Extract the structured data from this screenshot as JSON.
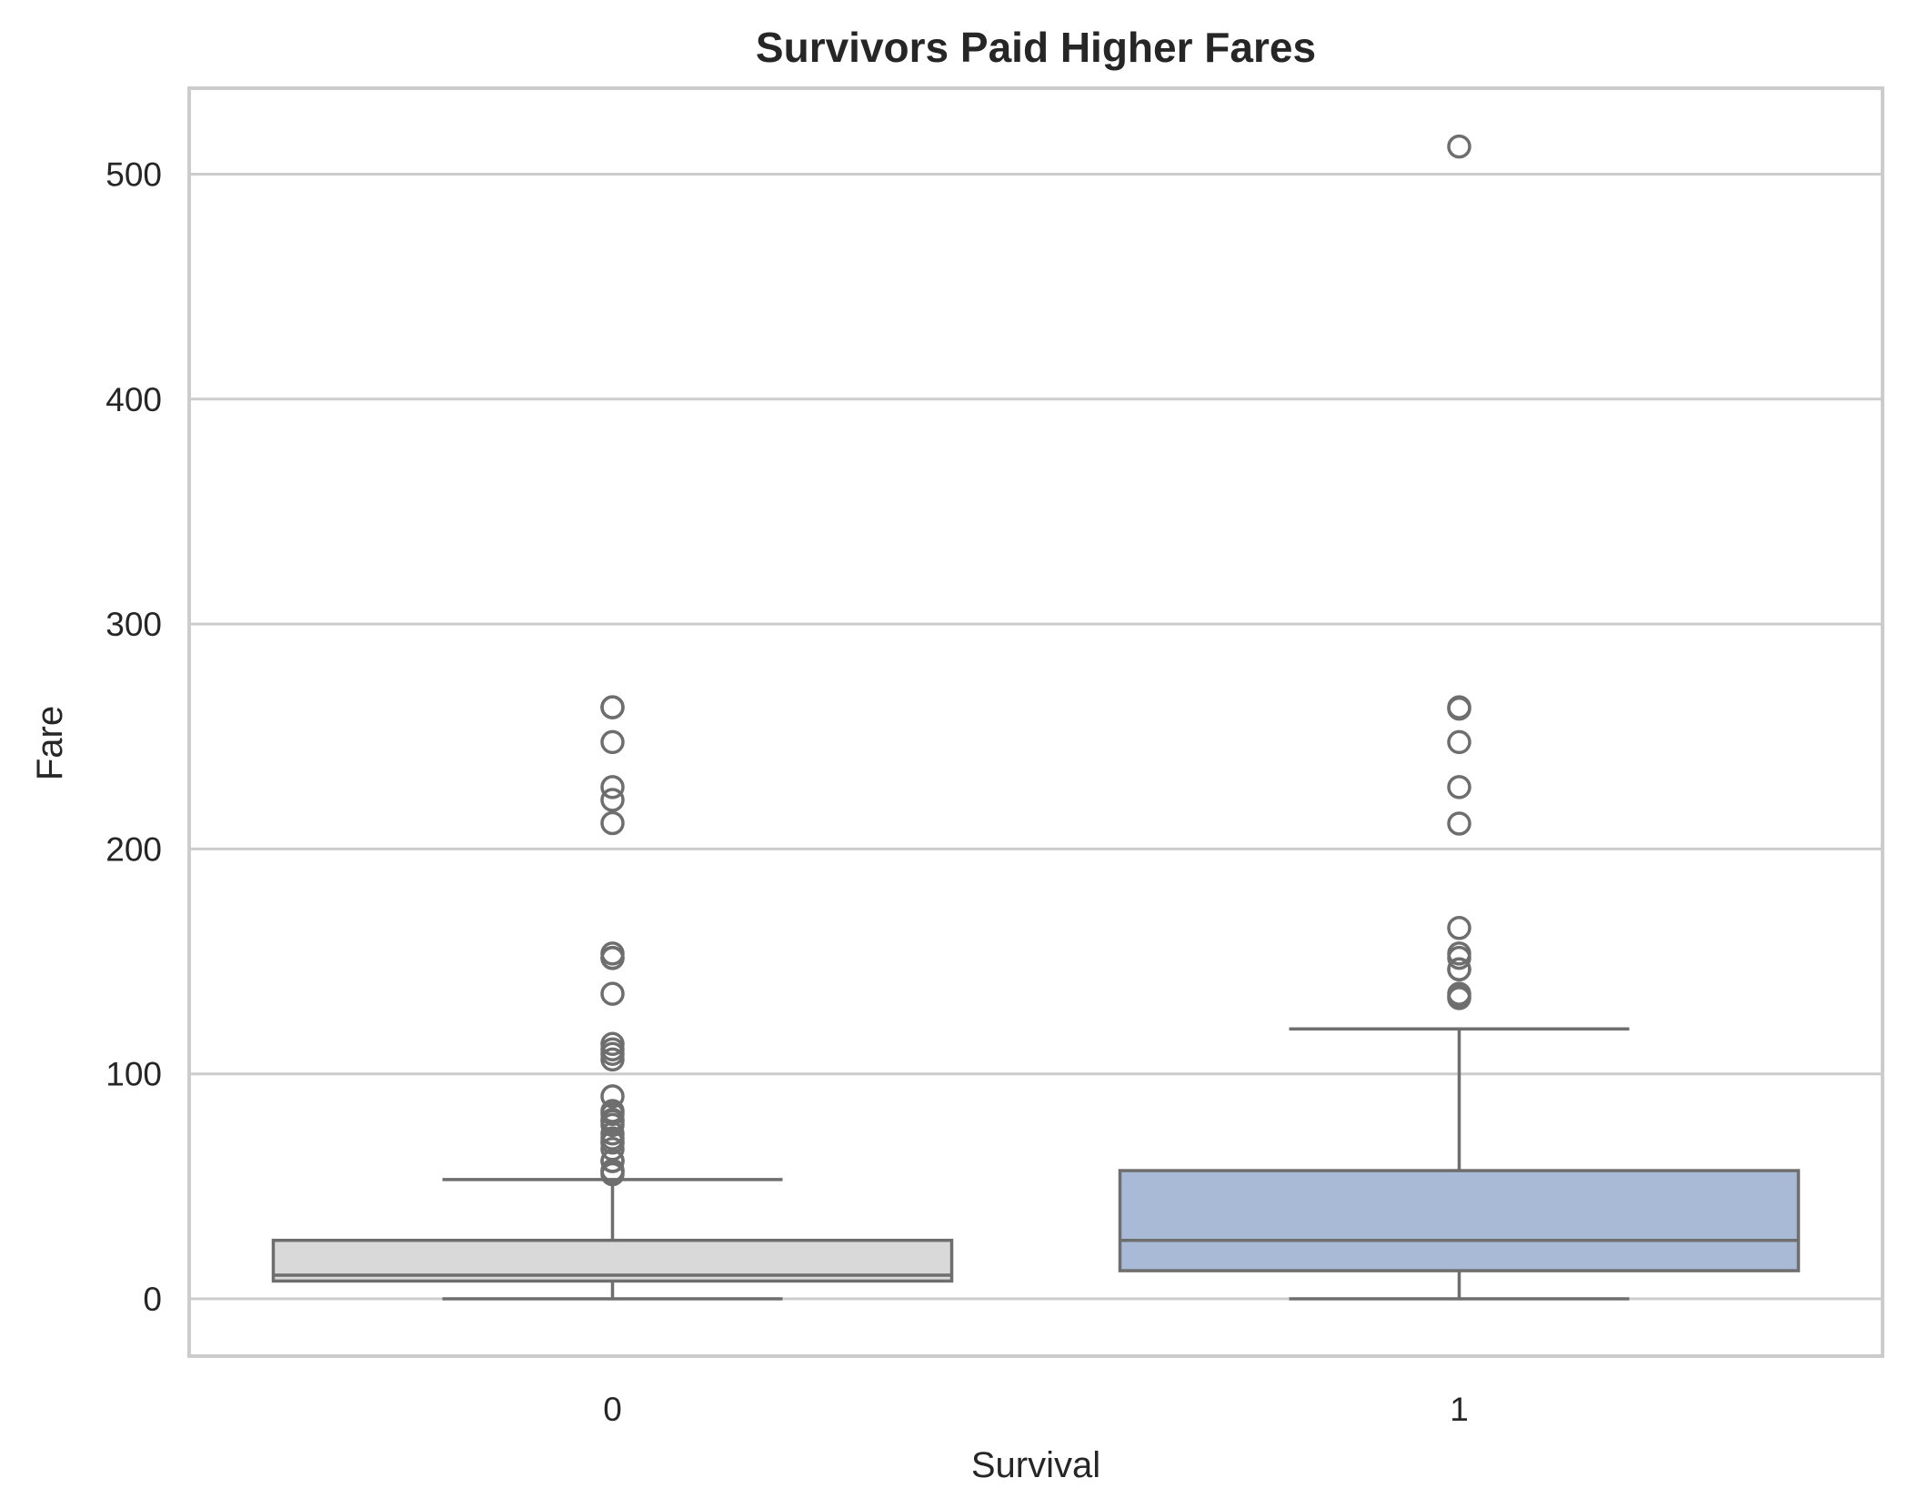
{
  "chart_data": {
    "type": "box",
    "title": "Survivors Paid Higher Fares",
    "xlabel": "Survival",
    "ylabel": "Fare",
    "ylim": [
      -25,
      540
    ],
    "yticks": [
      0,
      100,
      200,
      300,
      400,
      500
    ],
    "grid": "horizontal",
    "categories": [
      "0",
      "1"
    ],
    "series": [
      {
        "category": "0",
        "color": "#d9d9d9",
        "whisker_low": 0,
        "q1": 7.9,
        "median": 10.5,
        "q3": 26,
        "whisker_high": 53,
        "outliers": [
          263,
          263,
          247.5,
          227.5,
          221.8,
          211.5,
          153.5,
          151.6,
          151.5,
          135.6,
          113.3,
          110.9,
          108.9,
          106.4,
          90,
          83.5,
          82.2,
          79.6,
          78.9,
          77.3,
          73.5,
          71.3,
          69.5,
          69.5,
          66.6,
          61.3,
          61.2,
          57,
          56.5,
          55.4
        ]
      },
      {
        "category": "1",
        "color": "#a9bad6",
        "whisker_low": 0,
        "q1": 12.5,
        "median": 26,
        "q3": 57,
        "whisker_high": 120,
        "outliers": [
          512.3,
          263,
          262.4,
          247.5,
          227.5,
          211.3,
          164.9,
          153.5,
          151.6,
          146.5,
          146.5,
          135.6,
          134.5,
          133.7
        ]
      }
    ],
    "colors": {
      "line": "#6e6e6e",
      "grid": "#cccccc",
      "frame": "#cccccc",
      "text": "#262626"
    }
  }
}
